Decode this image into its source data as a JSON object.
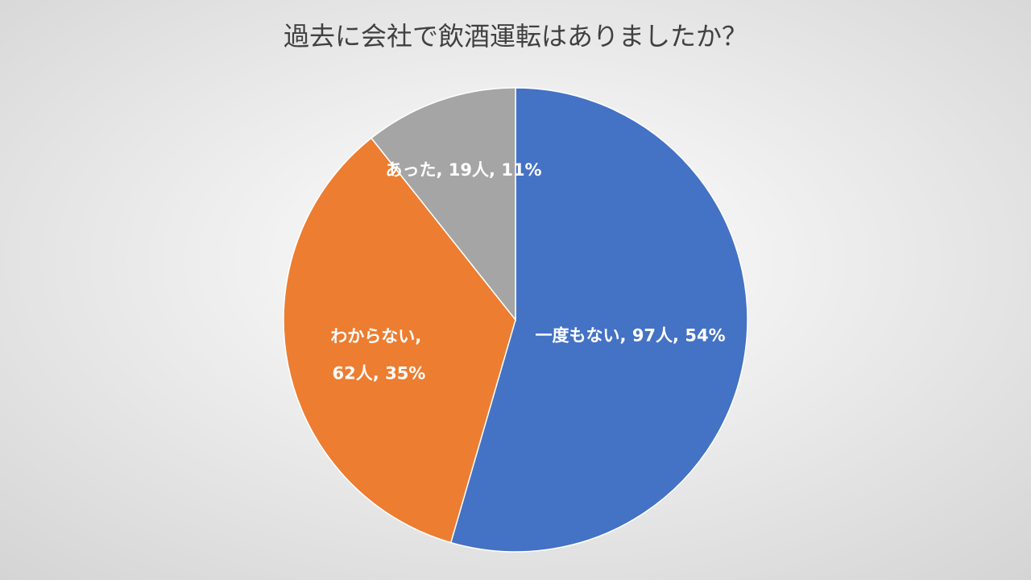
{
  "chart_data": {
    "type": "pie",
    "title": "過去に会社で飲酒運転はありましたか？",
    "categories": [
      "一度もない",
      "わからない",
      "あった"
    ],
    "values": [
      97,
      62,
      19
    ],
    "value_labels": [
      "97人",
      "62人",
      "19人"
    ],
    "percents": [
      54,
      35,
      11
    ],
    "percent_labels": [
      "54%",
      "35%",
      "11%"
    ],
    "label_separator": ", ",
    "colors": [
      "#4472c4",
      "#ed7d31",
      "#a5a5a5"
    ]
  }
}
